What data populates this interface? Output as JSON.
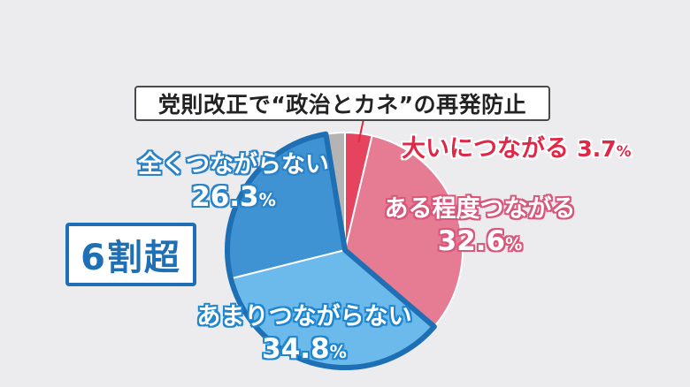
{
  "title": "党則改正で“政治とカネ”の再発防止",
  "badge": "6割超",
  "chart_data": {
    "type": "pie",
    "slices": [
      {
        "label": "大いにつながる",
        "value": 3.7,
        "display": "3.7",
        "unit": "%",
        "color": "#e6435e"
      },
      {
        "label": "ある程度つながる",
        "value": 32.6,
        "display": "32.6",
        "unit": "%",
        "color": "#e67b94"
      },
      {
        "label": "あまりつながらない",
        "value": 34.8,
        "display": "34.8",
        "unit": "%",
        "color": "#6cb9ec"
      },
      {
        "label": "全くつながらない",
        "value": 26.3,
        "display": "26.3",
        "unit": "%",
        "color": "#3f93d2"
      },
      {
        "label": "",
        "value": 2.6,
        "display": "",
        "unit": "",
        "color": "#b4b4b4"
      }
    ],
    "highlighted_slices": [
      "あまりつながらない",
      "全くつながらない"
    ],
    "highlight_color": "#1f6fb4"
  }
}
